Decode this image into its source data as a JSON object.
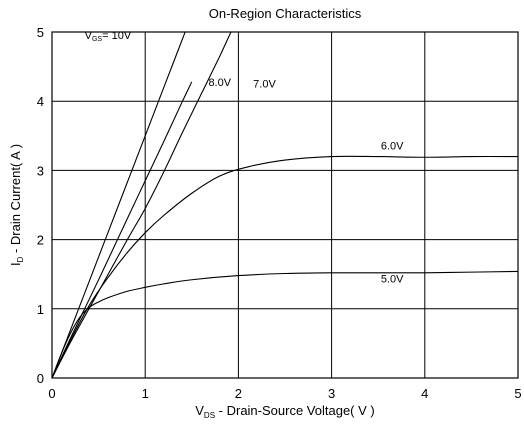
{
  "chart_data": {
    "type": "line",
    "title": "On-Region Characteristics",
    "xlabel": {
      "prefix": "V",
      "sub": "DS",
      "suffix": " - Drain-Source Voltage( V )"
    },
    "ylabel": {
      "prefix": "I",
      "sub": "D",
      "suffix": " - Drain Current( A )"
    },
    "xlim": [
      0,
      5
    ],
    "ylim": [
      0,
      5
    ],
    "x_ticks": [
      "0",
      "1",
      "2",
      "3",
      "4",
      "5"
    ],
    "y_ticks": [
      "0",
      "1",
      "2",
      "3",
      "4",
      "5"
    ],
    "grid": true,
    "series": [
      {
        "name": "V_GS = 10V",
        "x": [
          0,
          0.2,
          0.5,
          0.8,
          1.0,
          1.2,
          1.5
        ],
        "y": [
          0,
          0.7,
          1.75,
          2.8,
          3.5,
          4.2,
          5.25
        ]
      },
      {
        "name": "8.0V",
        "x": [
          0,
          0.2,
          0.5,
          0.8,
          1.0,
          1.2,
          1.4,
          1.5
        ],
        "y": [
          0,
          0.58,
          1.42,
          2.28,
          2.85,
          3.42,
          4.0,
          4.28
        ]
      },
      {
        "name": "7.0V",
        "x": [
          0,
          0.2,
          0.5,
          0.8,
          1.0,
          1.2,
          1.4,
          1.6,
          1.8,
          1.92
        ],
        "y": [
          0,
          0.52,
          1.25,
          1.98,
          2.45,
          2.98,
          3.55,
          4.1,
          4.65,
          5.0
        ]
      },
      {
        "name": "6.0V",
        "x": [
          0,
          0.2,
          0.4,
          0.6,
          0.8,
          1.0,
          1.2,
          1.5,
          1.8,
          2.1,
          2.5,
          3.0,
          3.5,
          4.0,
          4.5,
          5.0
        ],
        "y": [
          0,
          0.55,
          1.05,
          1.45,
          1.8,
          2.1,
          2.35,
          2.67,
          2.92,
          3.05,
          3.15,
          3.2,
          3.2,
          3.19,
          3.2,
          3.2
        ]
      },
      {
        "name": "5.0V",
        "x": [
          0,
          0.1,
          0.2,
          0.3,
          0.4,
          0.5,
          0.6,
          0.8,
          1.0,
          1.2,
          1.5,
          2.0,
          2.5,
          3.0,
          3.5,
          4.0,
          4.5,
          5.0
        ],
        "y": [
          0,
          0.35,
          0.65,
          0.88,
          1.02,
          1.1,
          1.16,
          1.25,
          1.31,
          1.36,
          1.42,
          1.48,
          1.51,
          1.52,
          1.52,
          1.52,
          1.53,
          1.54
        ]
      }
    ],
    "curve_labels": [
      {
        "text_prefix": "V",
        "text_sub": "GS",
        "text_suffix": "= 10V",
        "x": 0.6,
        "y": 4.9
      },
      {
        "text_prefix": "8.0V",
        "text_sub": "",
        "text_suffix": "",
        "x": 1.8,
        "y": 4.22
      },
      {
        "text_prefix": "7.0V",
        "text_sub": "",
        "text_suffix": "",
        "x": 2.28,
        "y": 4.2
      },
      {
        "text_prefix": "6.0V",
        "text_sub": "",
        "text_suffix": "",
        "x": 3.65,
        "y": 3.3
      },
      {
        "text_prefix": "5.0V",
        "text_sub": "",
        "text_suffix": "",
        "x": 3.65,
        "y": 1.38
      }
    ]
  }
}
